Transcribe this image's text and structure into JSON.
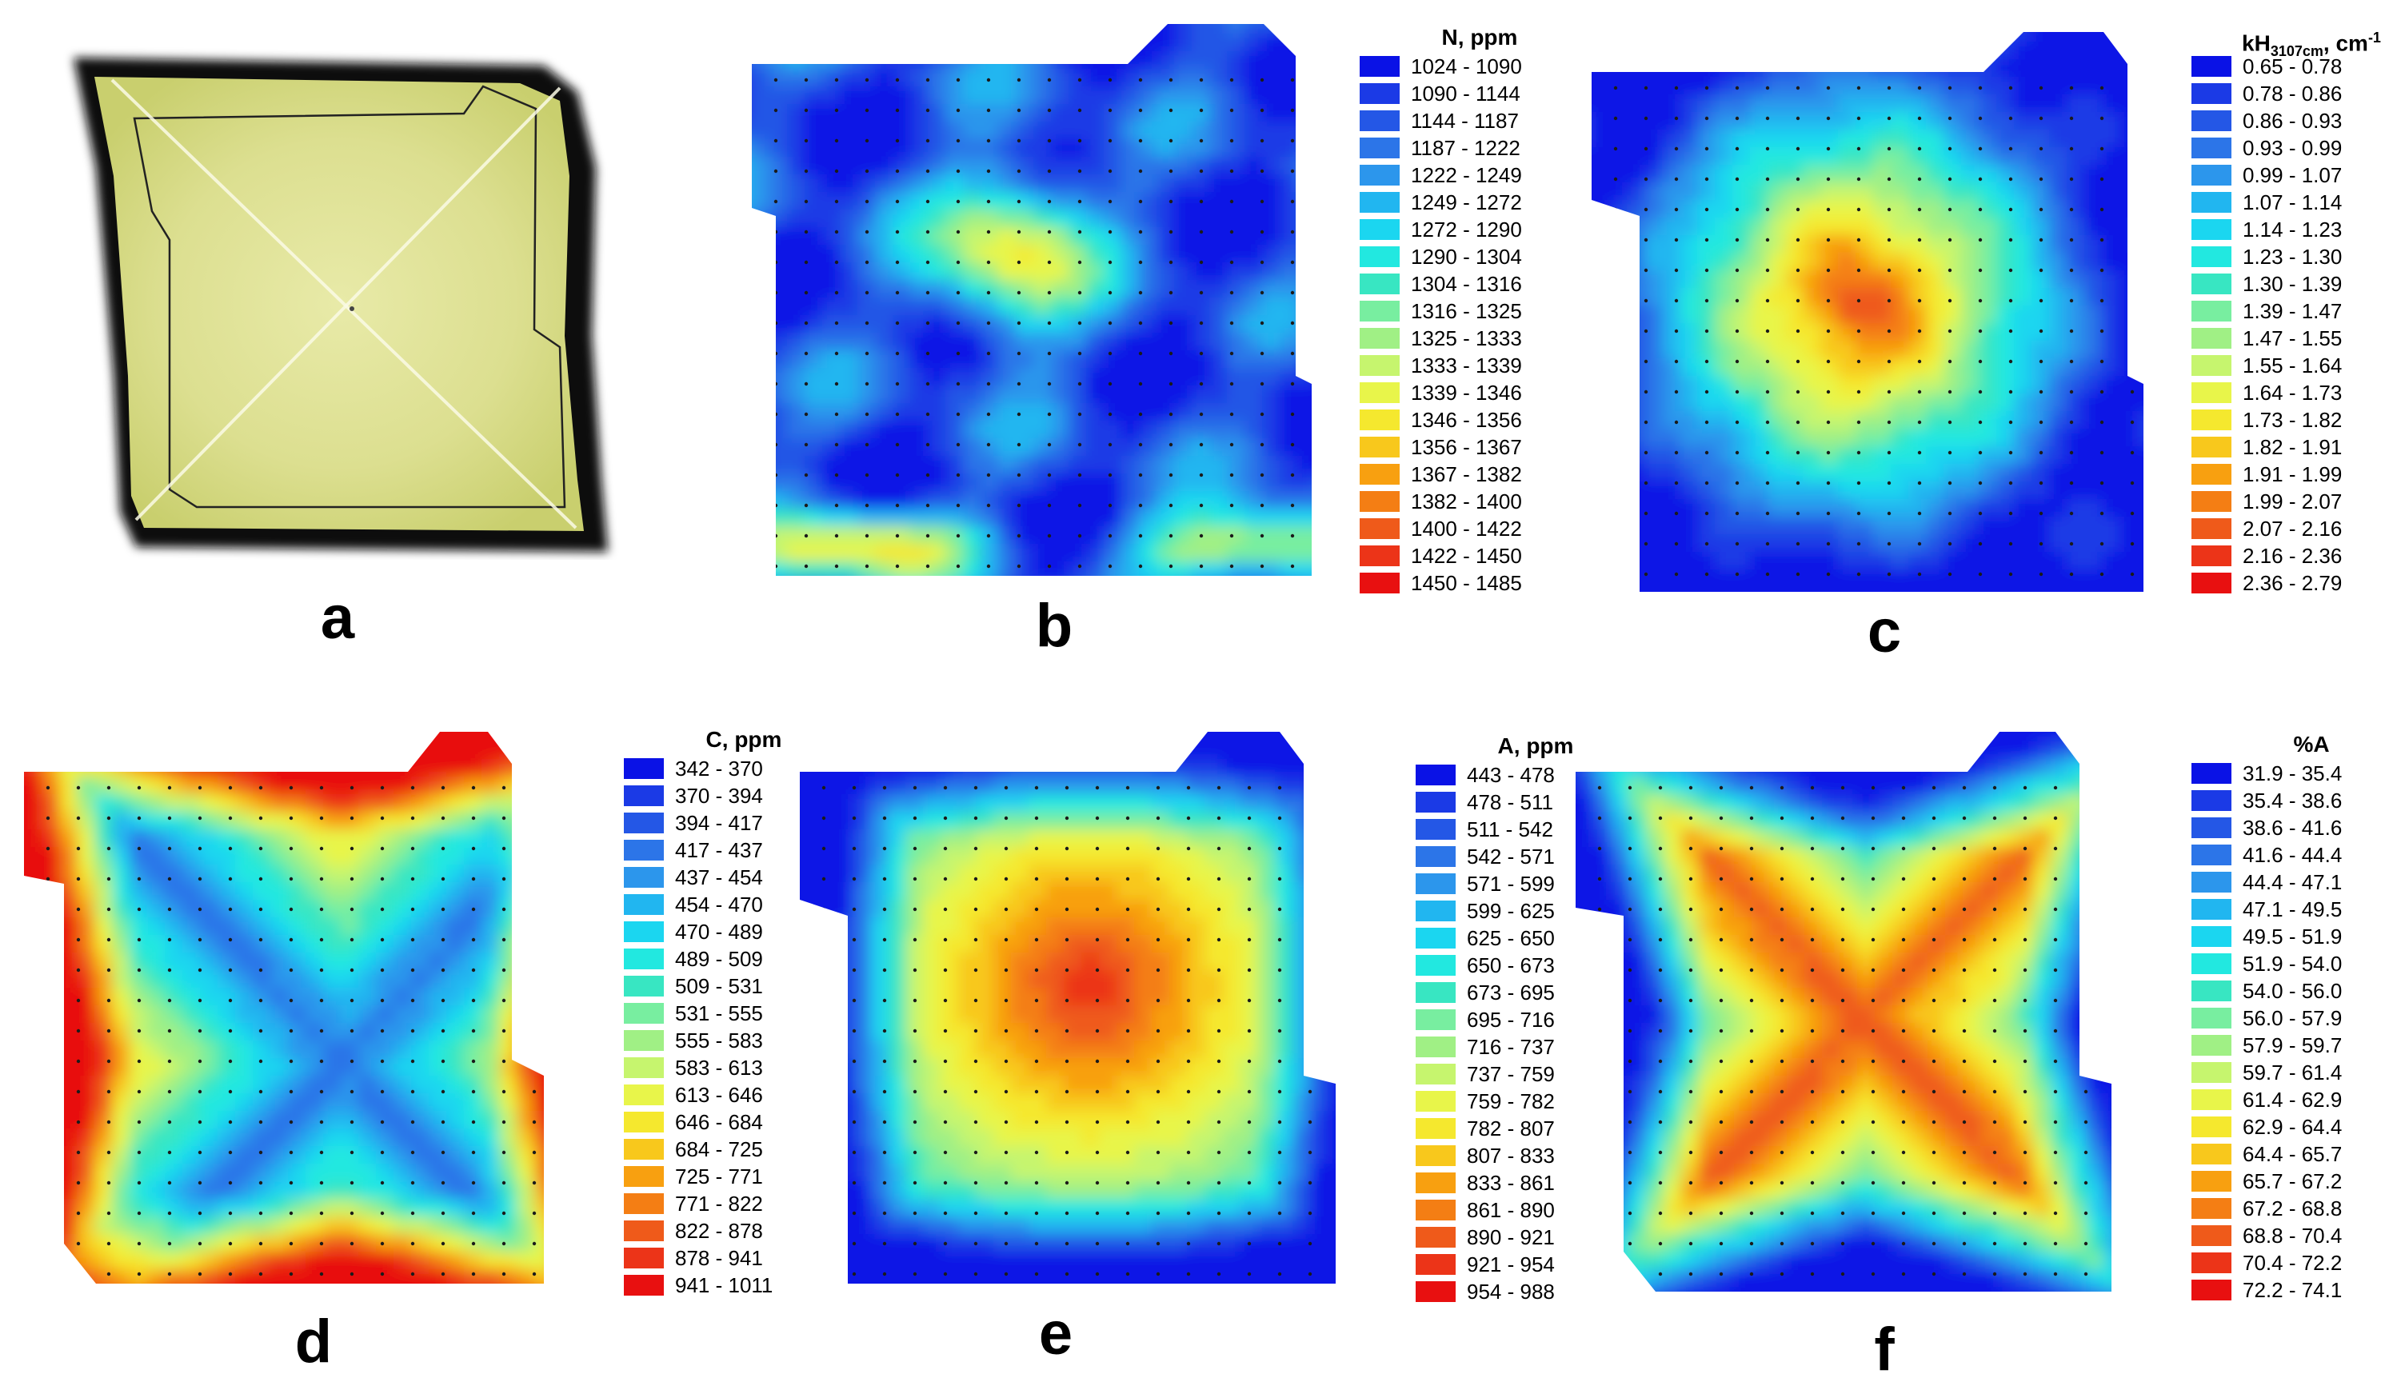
{
  "panels": [
    {
      "id": "a",
      "letter": "a"
    },
    {
      "id": "b",
      "letter": "b"
    },
    {
      "id": "c",
      "letter": "c"
    },
    {
      "id": "d",
      "letter": "d"
    },
    {
      "id": "e",
      "letter": "e"
    },
    {
      "id": "f",
      "letter": "f"
    }
  ],
  "chart_data": [
    {
      "panel": "b",
      "type": "heatmap",
      "legend_title": "N, ppm",
      "classes": [
        "1024 - 1090",
        "1090 - 1144",
        "1144 - 1187",
        "1187 - 1222",
        "1222 - 1249",
        "1249 - 1272",
        "1272 - 1290",
        "1290 - 1304",
        "1304 - 1316",
        "1316 - 1325",
        "1325 - 1333",
        "1333 - 1339",
        "1339 - 1346",
        "1346 - 1356",
        "1356 - 1367",
        "1367 - 1382",
        "1382 - 1400",
        "1400 - 1422",
        "1422 - 1450",
        "1450 - 1485"
      ],
      "colors": [
        "#0a12e6",
        "#1b3ae6",
        "#2457e6",
        "#2c75e8",
        "#2c96ec",
        "#21b6f0",
        "#1bd6f0",
        "#22e8e0",
        "#38e6c2",
        "#78eea0",
        "#a0f085",
        "#c6f56e",
        "#e8f54a",
        "#f5e82e",
        "#f8c81c",
        "#f8a010",
        "#f47e14",
        "#ef5a1a",
        "#ec3418",
        "#e81010"
      ],
      "pattern": "heterogeneous",
      "max_region": "center and bottom rows",
      "min_region": "left and lower-middle bands",
      "grid_points": "yes"
    },
    {
      "panel": "c",
      "type": "heatmap",
      "legend_title": "kH",
      "legend_title_sub": "3107cm",
      "legend_title_unit": ", cm",
      "legend_title_sup": "-1",
      "classes": [
        "0.65 - 0.78",
        "0.78 - 0.86",
        "0.86 - 0.93",
        "0.93 - 0.99",
        "0.99 - 1.07",
        "1.07 - 1.14",
        "1.14 - 1.23",
        "1.23 - 1.30",
        "1.30 - 1.39",
        "1.39 - 1.47",
        "1.47 - 1.55",
        "1.55 - 1.64",
        "1.64 - 1.73",
        "1.73 - 1.82",
        "1.82 - 1.91",
        "1.91 - 1.99",
        "1.99 - 2.07",
        "2.07 - 2.16",
        "2.16 - 2.36",
        "2.36 - 2.79"
      ],
      "colors": [
        "#0a12e6",
        "#1b3ae6",
        "#2457e6",
        "#2c75e8",
        "#2c96ec",
        "#21b6f0",
        "#1bd6f0",
        "#22e8e0",
        "#38e6c2",
        "#78eea0",
        "#a0f085",
        "#c6f56e",
        "#e8f54a",
        "#f5e82e",
        "#f8c81c",
        "#f8a010",
        "#f47e14",
        "#ef5a1a",
        "#ec3418",
        "#e81010"
      ],
      "pattern": "central maximum",
      "max_region": "center",
      "min_region": "edges",
      "grid_points": "yes"
    },
    {
      "panel": "d",
      "type": "heatmap",
      "legend_title": "C, ppm",
      "classes": [
        "342 - 370",
        "370 - 394",
        "394 - 417",
        "417 - 437",
        "437 - 454",
        "454 - 470",
        "470 - 489",
        "489 - 509",
        "509 - 531",
        "531 - 555",
        "555 - 583",
        "583 - 613",
        "613 - 646",
        "646 - 684",
        "684 - 725",
        "725 - 771",
        "771 - 822",
        "822 - 878",
        "878 - 941",
        "941 - 1011"
      ],
      "colors": [
        "#0a12e6",
        "#1b3ae6",
        "#2457e6",
        "#2c75e8",
        "#2c96ec",
        "#21b6f0",
        "#1bd6f0",
        "#22e8e0",
        "#38e6c2",
        "#78eea0",
        "#a0f085",
        "#c6f56e",
        "#e8f54a",
        "#f5e82e",
        "#f8c81c",
        "#f8a010",
        "#f47e14",
        "#ef5a1a",
        "#ec3418",
        "#e81010"
      ],
      "pattern": "cross-shaped minimum along diagonals",
      "max_region": "edges",
      "min_region": "diagonals",
      "grid_points": "yes"
    },
    {
      "panel": "e",
      "type": "heatmap",
      "legend_title": "A, ppm",
      "classes": [
        "443 - 478",
        "478 - 511",
        "511 - 542",
        "542 - 571",
        "571 - 599",
        "599 - 625",
        "625 - 650",
        "650 - 673",
        "673 - 695",
        "695 - 716",
        "716 - 737",
        "737 - 759",
        "759 - 782",
        "782 - 807",
        "807 - 833",
        "833 - 861",
        "861 - 890",
        "890 - 921",
        "921 - 954",
        "954 - 988"
      ],
      "colors": [
        "#0a12e6",
        "#1b3ae6",
        "#2457e6",
        "#2c75e8",
        "#2c96ec",
        "#21b6f0",
        "#1bd6f0",
        "#22e8e0",
        "#38e6c2",
        "#78eea0",
        "#a0f085",
        "#c6f56e",
        "#e8f54a",
        "#f5e82e",
        "#f8c81c",
        "#f8a010",
        "#f47e14",
        "#ef5a1a",
        "#ec3418",
        "#e81010"
      ],
      "pattern": "central maximum with diagonal arms",
      "max_region": "center",
      "min_region": "edges",
      "grid_points": "yes"
    },
    {
      "panel": "f",
      "type": "heatmap",
      "legend_title": "%A",
      "classes": [
        "31.9 - 35.4",
        "35.4 - 38.6",
        "38.6 - 41.6",
        "41.6 - 44.4",
        "44.4 - 47.1",
        "47.1 - 49.5",
        "49.5 - 51.9",
        "51.9 - 54.0",
        "54.0 - 56.0",
        "56.0 - 57.9",
        "57.9 - 59.7",
        "59.7 - 61.4",
        "61.4 - 62.9",
        "62.9 - 64.4",
        "64.4 - 65.7",
        "65.7 - 67.2",
        "67.2 - 68.8",
        "68.8 - 70.4",
        "70.4 - 72.2",
        "72.2 - 74.1"
      ],
      "colors": [
        "#0a12e6",
        "#1b3ae6",
        "#2457e6",
        "#2c75e8",
        "#2c96ec",
        "#21b6f0",
        "#1bd6f0",
        "#22e8e0",
        "#38e6c2",
        "#78eea0",
        "#a0f085",
        "#c6f56e",
        "#e8f54a",
        "#f5e82e",
        "#f8c81c",
        "#f8a010",
        "#f47e14",
        "#ef5a1a",
        "#ec3418",
        "#e81010"
      ],
      "pattern": "cross-shaped maximum along diagonals",
      "max_region": "diagonals",
      "min_region": "edges",
      "grid_points": "yes"
    }
  ]
}
